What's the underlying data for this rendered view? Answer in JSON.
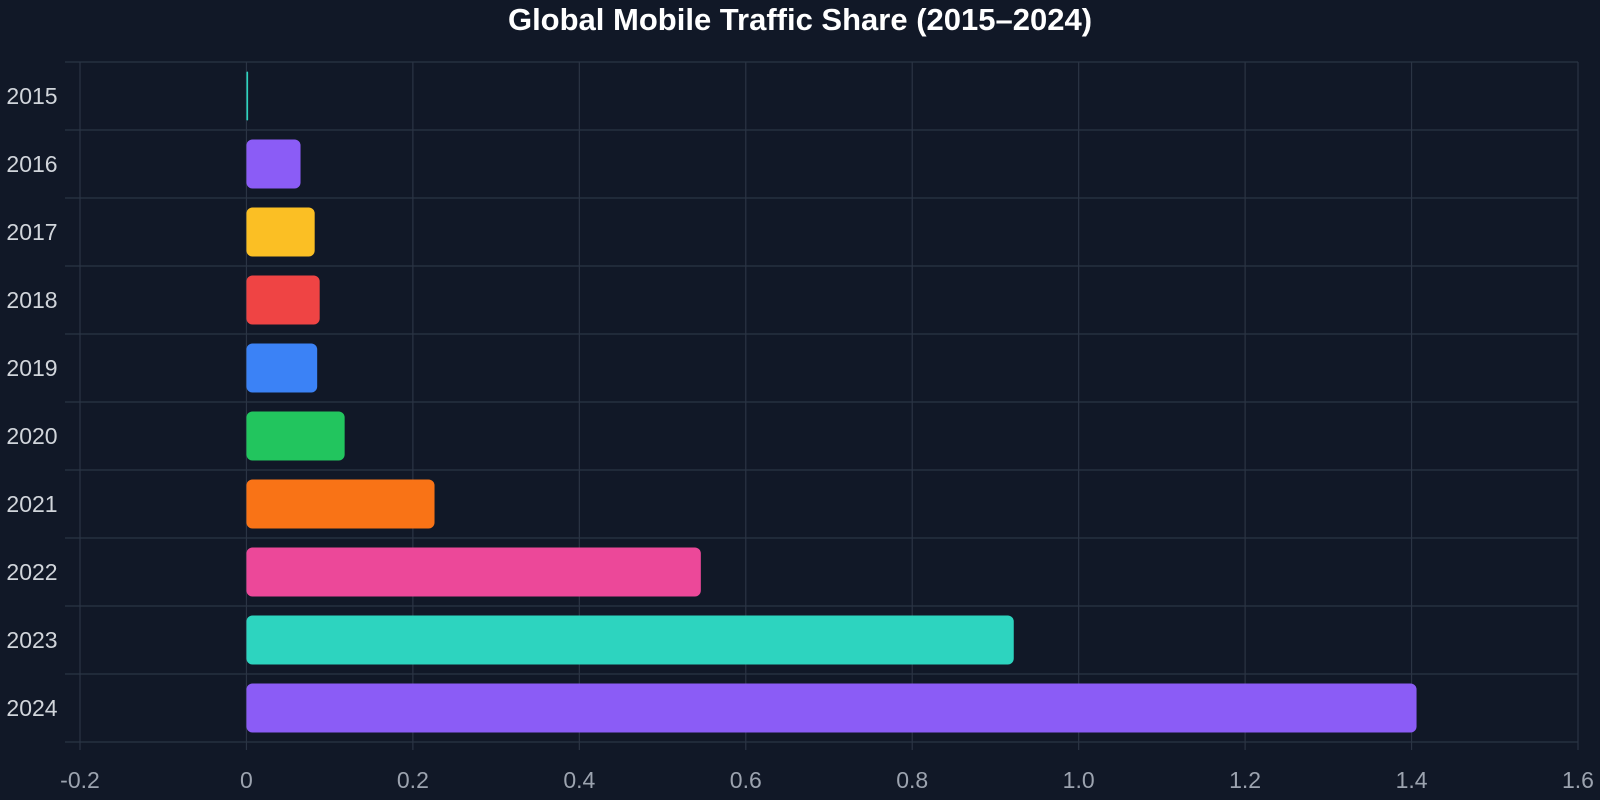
{
  "chart_data": {
    "type": "bar",
    "orientation": "horizontal",
    "title": "Global Mobile Traffic Share (2015–2024)",
    "xlabel": "",
    "ylabel": "",
    "xlim": [
      -0.2,
      1.6
    ],
    "x_ticks": [
      -0.2,
      0,
      0.2,
      0.4,
      0.6,
      0.8,
      1.0,
      1.2,
      1.4,
      1.6
    ],
    "x_tick_labels": [
      "-0.2",
      "0",
      "0.2",
      "0.4",
      "0.6",
      "0.8",
      "1.0",
      "1.2",
      "1.4",
      "1.6"
    ],
    "categories": [
      "2015",
      "2016",
      "2017",
      "2018",
      "2019",
      "2020",
      "2021",
      "2022",
      "2023",
      "2024"
    ],
    "values": [
      0.002,
      0.065,
      0.082,
      0.088,
      0.085,
      0.118,
      0.226,
      0.546,
      0.922,
      1.406
    ],
    "bar_colors": [
      "#2dd4bf",
      "#8b5cf6",
      "#fbbf24",
      "#ef4444",
      "#3b82f6",
      "#22c55e",
      "#f97316",
      "#ec4899",
      "#2dd4bf",
      "#8b5cf6"
    ],
    "grid": true,
    "legend": "none"
  },
  "theme": {
    "background": "#111827",
    "grid_color": "#2b3444",
    "title_color": "#ffffff",
    "tick_label_color": "#9ca3af",
    "category_label_color": "#d1d5db"
  }
}
